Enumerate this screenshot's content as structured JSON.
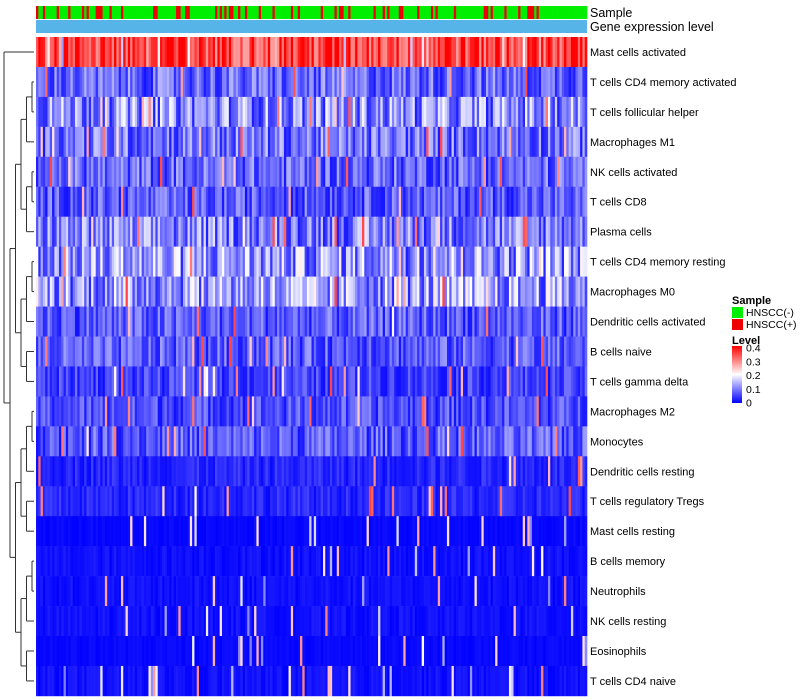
{
  "chart_data": {
    "type": "heatmap",
    "title": "",
    "annotation_tracks": [
      "Sample",
      "Gene expression level"
    ],
    "rows": [
      "Mast cells activated",
      "T cells CD4 memory activated",
      "T cells follicular helper",
      "Macrophages M1",
      "NK cells activated",
      "T cells CD8",
      "Plasma cells",
      "T cells CD4 memory resting",
      "Macrophages M0",
      "Dendritic cells activated",
      "B cells naive",
      "T cells gamma delta",
      "Macrophages M2",
      "Monocytes",
      "Dendritic cells resting",
      "T cells regulatory  Tregs",
      "Mast cells resting",
      "B cells memory",
      "Neutrophils",
      "NK cells resting",
      "Eosinophils",
      "T cells CD4 naive"
    ],
    "row_approx_mean_level": [
      0.36,
      0.08,
      0.11,
      0.09,
      0.08,
      0.07,
      0.1,
      0.12,
      0.12,
      0.07,
      0.07,
      0.05,
      0.06,
      0.07,
      0.03,
      0.03,
      0.01,
      0.02,
      0.02,
      0.02,
      0.01,
      0.02
    ],
    "n_samples": 240,
    "sample_legend": {
      "title": "Sample",
      "entries": [
        {
          "label": "HNSCC(-)",
          "color": "#00ee00"
        },
        {
          "label": "HNSCC(+)",
          "color": "#ee0000"
        }
      ]
    },
    "level_legend": {
      "title": "Level",
      "ticks": [
        "0.4",
        "0.3",
        "0.2",
        "0.1",
        "0"
      ],
      "tick_values": [
        0.4,
        0.3,
        0.2,
        0.1,
        0
      ],
      "range": [
        0,
        0.4
      ],
      "colors": [
        "#0000ff",
        "#ffffff",
        "#ff0000"
      ]
    },
    "expression_track_color": "#56b4e9"
  }
}
